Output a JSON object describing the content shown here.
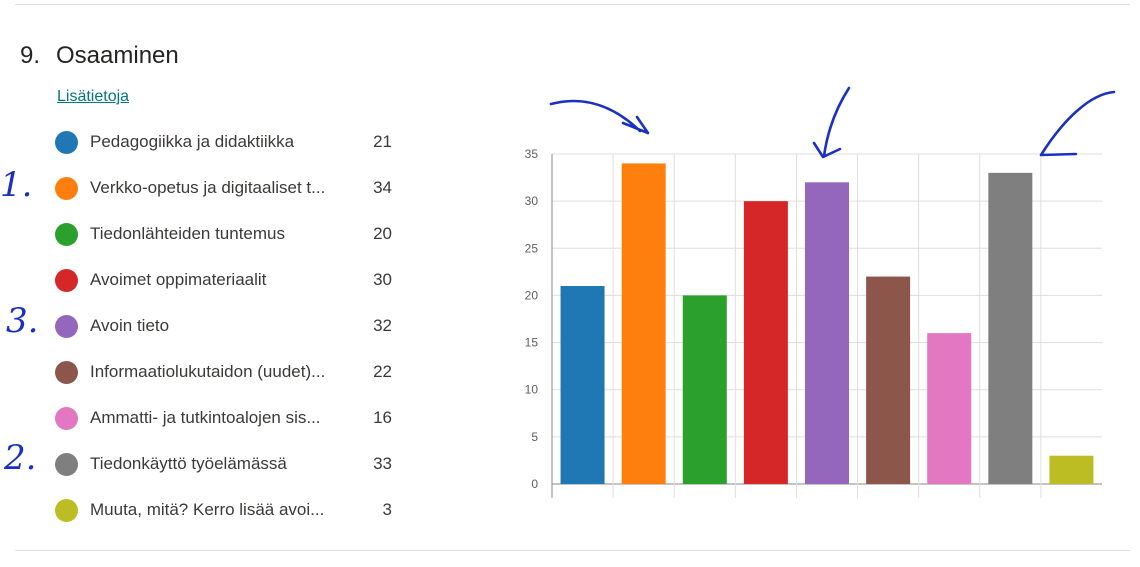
{
  "question": {
    "number": "9.",
    "title": "Osaaminen"
  },
  "more_link": "Lisätietoja",
  "legend": [
    {
      "label": "Pedagogiikka ja didaktiikka",
      "count": "21",
      "color": "#1f77b4"
    },
    {
      "label": "Verkko-opetus ja digitaaliset t...",
      "count": "34",
      "color": "#ff7f0e"
    },
    {
      "label": "Tiedonlähteiden tuntemus",
      "count": "20",
      "color": "#2ca02c"
    },
    {
      "label": "Avoimet oppimateriaalit",
      "count": "30",
      "color": "#d62728"
    },
    {
      "label": "Avoin tieto",
      "count": "32",
      "color": "#9467bd"
    },
    {
      "label": "Informaatiolukutaidon (uudet)...",
      "count": "22",
      "color": "#8c564b"
    },
    {
      "label": "Ammatti- ja tutkintoalojen sis...",
      "count": "16",
      "color": "#e377c2"
    },
    {
      "label": "Tiedonkäyttö työelämässä",
      "count": "33",
      "color": "#7f7f7f"
    },
    {
      "label": "Muuta, mitä? Kerro lisää avoi...",
      "count": "3",
      "color": "#bcbd22"
    }
  ],
  "handwritten_marks": [
    "1.",
    "3.",
    "2."
  ],
  "chart_data": {
    "type": "bar",
    "categories": [
      "Pedagogiikka ja didaktiikka",
      "Verkko-opetus ja digitaaliset t...",
      "Tiedonlähteiden tuntemus",
      "Avoimet oppimateriaalit",
      "Avoin tieto",
      "Informaatiolukutaidon (uudet)...",
      "Ammatti- ja tutkintoalojen sis...",
      "Tiedonkäyttö työelämässä",
      "Muuta, mitä? Kerro lisää avoi..."
    ],
    "values": [
      21,
      34,
      20,
      30,
      32,
      22,
      16,
      33,
      3
    ],
    "colors": [
      "#1f77b4",
      "#ff7f0e",
      "#2ca02c",
      "#d62728",
      "#9467bd",
      "#8c564b",
      "#e377c2",
      "#7f7f7f",
      "#bcbd22"
    ],
    "ylim": [
      0,
      35
    ],
    "yticks": [
      0,
      5,
      10,
      15,
      20,
      25,
      30,
      35
    ],
    "grid": true,
    "title": "",
    "xlabel": "",
    "ylabel": ""
  }
}
